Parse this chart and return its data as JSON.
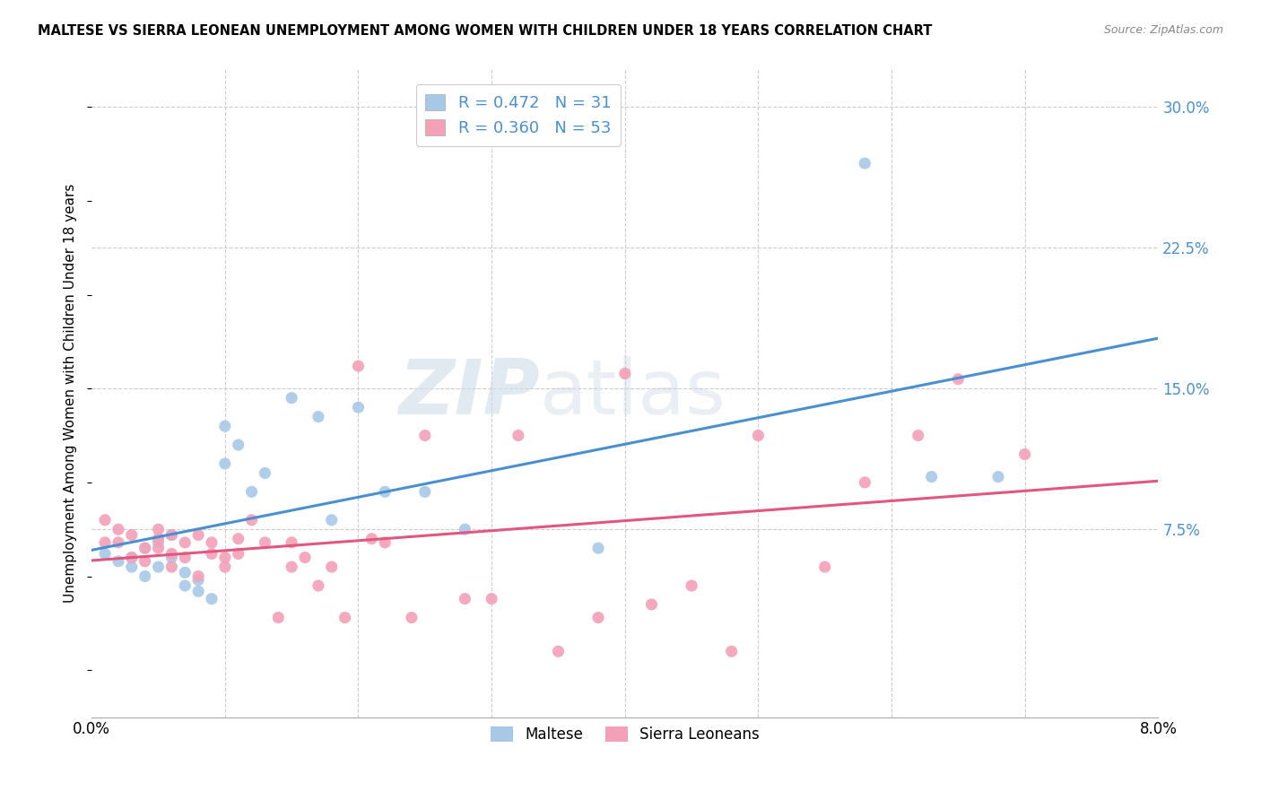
{
  "title": "MALTESE VS SIERRA LEONEAN UNEMPLOYMENT AMONG WOMEN WITH CHILDREN UNDER 18 YEARS CORRELATION CHART",
  "source": "Source: ZipAtlas.com",
  "ylabel": "Unemployment Among Women with Children Under 18 years",
  "y_ticks_right": [
    0.075,
    0.15,
    0.225,
    0.3
  ],
  "y_tick_labels_right": [
    "7.5%",
    "15.0%",
    "22.5%",
    "30.0%"
  ],
  "xlim": [
    0.0,
    0.08
  ],
  "ylim": [
    -0.025,
    0.32
  ],
  "legend_maltese_R": "0.472",
  "legend_maltese_N": "31",
  "legend_sierra_R": "0.360",
  "legend_sierra_N": "53",
  "color_maltese": "#a8c8e8",
  "color_sierra": "#f4a0b8",
  "color_maltese_line": "#4a90d0",
  "color_sierra_line": "#e05880",
  "legend_label_maltese": "Maltese",
  "legend_label_sierra": "Sierra Leoneans",
  "watermark_zip": "ZIP",
  "watermark_atlas": "atlas",
  "maltese_x": [
    0.001,
    0.002,
    0.003,
    0.003,
    0.004,
    0.004,
    0.005,
    0.005,
    0.006,
    0.006,
    0.007,
    0.007,
    0.008,
    0.008,
    0.009,
    0.01,
    0.01,
    0.011,
    0.012,
    0.013,
    0.015,
    0.017,
    0.018,
    0.02,
    0.022,
    0.025,
    0.028,
    0.038,
    0.058,
    0.063,
    0.068
  ],
  "maltese_y": [
    0.062,
    0.058,
    0.06,
    0.055,
    0.065,
    0.05,
    0.068,
    0.055,
    0.072,
    0.06,
    0.052,
    0.045,
    0.048,
    0.042,
    0.038,
    0.13,
    0.11,
    0.12,
    0.095,
    0.105,
    0.145,
    0.135,
    0.08,
    0.14,
    0.095,
    0.095,
    0.075,
    0.065,
    0.27,
    0.103,
    0.103
  ],
  "sierra_x": [
    0.001,
    0.001,
    0.002,
    0.002,
    0.003,
    0.003,
    0.004,
    0.004,
    0.005,
    0.005,
    0.005,
    0.006,
    0.006,
    0.006,
    0.007,
    0.007,
    0.008,
    0.008,
    0.009,
    0.009,
    0.01,
    0.01,
    0.011,
    0.011,
    0.012,
    0.013,
    0.014,
    0.015,
    0.015,
    0.016,
    0.017,
    0.018,
    0.019,
    0.02,
    0.021,
    0.022,
    0.024,
    0.025,
    0.028,
    0.03,
    0.032,
    0.035,
    0.038,
    0.04,
    0.042,
    0.045,
    0.048,
    0.05,
    0.055,
    0.058,
    0.062,
    0.065,
    0.07
  ],
  "sierra_y": [
    0.068,
    0.08,
    0.075,
    0.068,
    0.072,
    0.06,
    0.065,
    0.058,
    0.07,
    0.065,
    0.075,
    0.072,
    0.055,
    0.062,
    0.068,
    0.06,
    0.072,
    0.05,
    0.068,
    0.062,
    0.06,
    0.055,
    0.062,
    0.07,
    0.08,
    0.068,
    0.028,
    0.068,
    0.055,
    0.06,
    0.045,
    0.055,
    0.028,
    0.162,
    0.07,
    0.068,
    0.028,
    0.125,
    0.038,
    0.038,
    0.125,
    0.01,
    0.028,
    0.158,
    0.035,
    0.045,
    0.01,
    0.125,
    0.055,
    0.1,
    0.125,
    0.155,
    0.115
  ],
  "background_color": "#ffffff",
  "grid_color": "#cccccc",
  "minor_x_ticks": [
    0.01,
    0.02,
    0.03,
    0.04,
    0.05,
    0.06,
    0.07
  ]
}
